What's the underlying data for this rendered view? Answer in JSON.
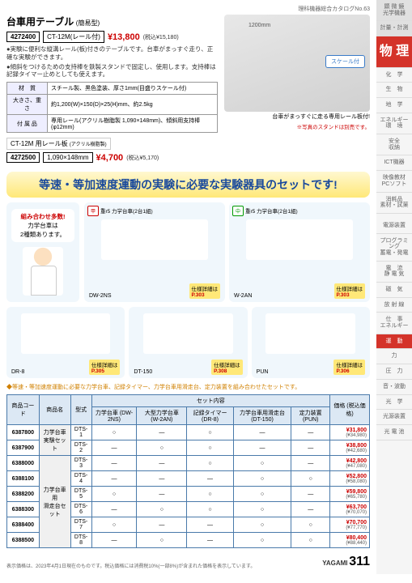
{
  "catalog_header": "理科機器総合カタログNo.63",
  "product_top": {
    "title": "台車用テーブル",
    "title_sub": "(簡易型)",
    "code": "4272400",
    "model": "CT-12M(レール付)",
    "price": "¥13,800",
    "price_tax": "(税込¥15,180)",
    "bullets": [
      "●実験に便利な縦溝レール(板)付きのテーブルです。台車がまっすぐ走り、正確な実験ができます。",
      "●傾斜をつけるための支持棒を鉄製スタンドで固定し、使用します。支持棒は記録タイマー止めとしても使えます。"
    ],
    "specs": [
      {
        "label": "材　質",
        "value": "スチール製、黒色塗装、厚さ1mm(目盛りスケール付)"
      },
      {
        "label": "大きさ、重さ",
        "value": "約1,200(W)×150(D)×25(H)mm、約2.5kg"
      },
      {
        "label": "付 属 品",
        "value": "専用レール(アクリル樹脂製 1,090×148mm)、傾斜用支持棒(φ12mm)"
      }
    ],
    "rail_board": {
      "heading": "CT-12M 用レール板",
      "heading_sub": "(アクリル樹脂製)",
      "code": "4272500",
      "size": "1,090×148mm",
      "price": "¥4,700",
      "price_tax": "(税込¥5,170)"
    },
    "image": {
      "dimension": "1200mm",
      "scale_label": "スケール付",
      "caption": "台車がまっすぐに走る専用レール板付!",
      "note": "※写真のスタンドは別売です。"
    }
  },
  "banner": "等速・等加速度運動の実験に必要な実験器具のセットです!",
  "speech": {
    "line1": "組み合わせ多数!",
    "line2": "力学台車は",
    "line3": "2種類あります。"
  },
  "cards": [
    {
      "tag_color": "red",
      "tag_prefix": "甲",
      "tag": "重r5 力学台車(2台1組)",
      "name": "DW-2NS",
      "ref_label": "仕様詳細は",
      "ref": "P.303"
    },
    {
      "tag_color": "grn",
      "tag_prefix": "中",
      "tag": "重r5 力学台車(2台1組)",
      "name": "W-2AN",
      "ref_label": "仕様詳細は",
      "ref": "P.303"
    },
    {
      "name": "DR-8",
      "ref_label": "仕様詳細は",
      "ref": "P.305"
    },
    {
      "name": "DT-150",
      "ref_label": "仕様詳細は",
      "ref": "P.308"
    },
    {
      "name": "PUN",
      "ref_label": "仕様詳細は",
      "ref": "P.306"
    }
  ],
  "set_note": "◆等速・等加速度運動に必要な力学台車、記録タイマー、力学台車用滑走台、定力装置を組み合わせたセットです。",
  "table": {
    "headers": {
      "code": "商品コード",
      "name": "商品名",
      "model": "型式",
      "set_content": "セット内容",
      "c1": "力学台車\n(DW-2NS)",
      "c2": "大型力学台車\n(W-2AN)",
      "c3": "記録タイマー\n(DR-8)",
      "c4": "力学台車用滑走台\n(DT-150)",
      "c5": "定力装置\n(PUN)",
      "price": "価格\n(税込価格)"
    },
    "rows": [
      {
        "code": "6387800",
        "grp": "力学台車\n実験セット",
        "model": "DTS-1",
        "v": [
          "○",
          "—",
          "○",
          "—",
          "—"
        ],
        "price": "¥31,800",
        "tax": "(¥34,980)"
      },
      {
        "code": "6387900",
        "model": "DTS-2",
        "v": [
          "—",
          "○",
          "○",
          "—",
          "—"
        ],
        "price": "¥38,800",
        "tax": "(¥42,680)"
      },
      {
        "code": "6388000",
        "grp": "力学台車用\n滑走台セット",
        "model": "DTS-3",
        "v": [
          "—",
          "—",
          "○",
          "○",
          "—"
        ],
        "price": "¥42,800",
        "tax": "(¥47,080)"
      },
      {
        "code": "6388100",
        "model": "DTS-4",
        "v": [
          "—",
          "—",
          "—",
          "○",
          "○"
        ],
        "price": "¥52,800",
        "tax": "(¥58,080)"
      },
      {
        "code": "6388200",
        "model": "DTS-5",
        "v": [
          "○",
          "—",
          "○",
          "○",
          "—"
        ],
        "price": "¥59,800",
        "tax": "(¥65,780)"
      },
      {
        "code": "6388300",
        "model": "DTS-6",
        "v": [
          "—",
          "○",
          "○",
          "○",
          "—"
        ],
        "price": "¥63,700",
        "tax": "(¥70,070)"
      },
      {
        "code": "6388400",
        "model": "DTS-7",
        "v": [
          "○",
          "—",
          "—",
          "○",
          "○"
        ],
        "price": "¥70,700",
        "tax": "(¥77,770)"
      },
      {
        "code": "6388500",
        "model": "DTS-8",
        "v": [
          "—",
          "○",
          "—",
          "○",
          "○"
        ],
        "price": "¥80,400",
        "tax": "(¥88,440)"
      }
    ]
  },
  "footer": {
    "text": "表示価格は、2023年4月1日現在のものです。税込価格には消費税10%(一部8%)が含まれた価格を表示しています。",
    "brand": "YAGAMI",
    "page": "311"
  },
  "sidebar": {
    "top": [
      "顕 微 鏡\n光学機器",
      "計量・計測"
    ],
    "main": "物\n理",
    "mid": [
      "化　学",
      "生　物",
      "地　学",
      "エネルギー\n環　境",
      "安全\n収納",
      "ICT機器",
      "映像教材\nPCソフト",
      "消耗品\n素材・試薬"
    ],
    "sub": [
      "電源装置",
      "プログラミング\n蓄電・発電",
      "電　流\n静 電 気",
      "磁　気",
      "放 射 線",
      "仕　事\nエネルギー"
    ],
    "active_sub": "運　動",
    "sub2": [
      "力",
      "圧　力",
      "音・波動",
      "光　学",
      "光源装置",
      "光 電 池"
    ]
  }
}
